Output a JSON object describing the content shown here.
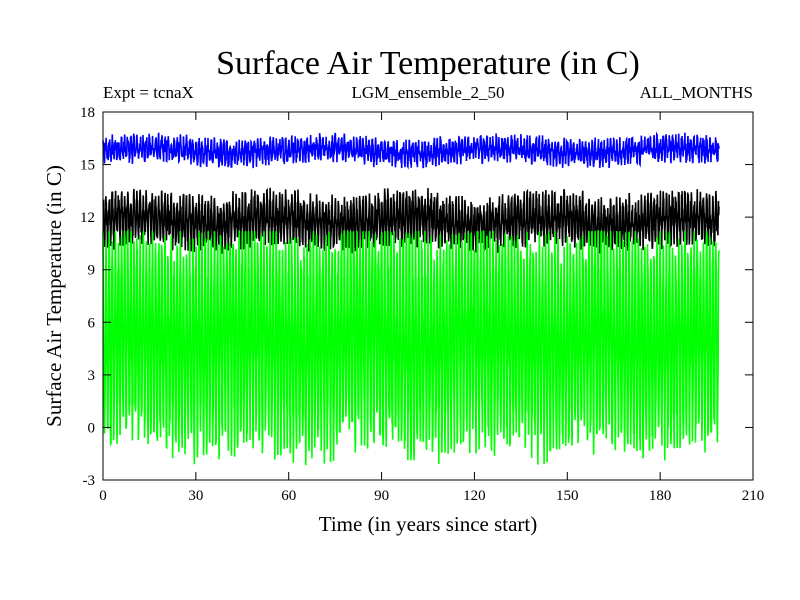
{
  "chart_data": {
    "type": "line",
    "title": "Surface Air Temperature (in C)",
    "subtitle_left": "Expt = tcnaX",
    "subtitle_center": "LGM_ensemble_2_50",
    "subtitle_right": "ALL_MONTHS",
    "xlabel": "Time (in years since start)",
    "ylabel": "Surface Air Temperature (in C)",
    "xlim": [
      0,
      210
    ],
    "ylim": [
      -3,
      18
    ],
    "x_ticks": [
      0,
      30,
      60,
      90,
      120,
      150,
      180,
      210
    ],
    "y_ticks": [
      -3,
      0,
      3,
      6,
      9,
      12,
      15,
      18
    ],
    "x_range": [
      0,
      199
    ],
    "grid": false,
    "series": [
      {
        "name": "upper series (blue)",
        "color": "#0000ff",
        "min_approx": 14.8,
        "max_approx": 16.9,
        "mean_approx": 15.8
      },
      {
        "name": "middle series (black)",
        "color": "#000000",
        "min_approx": 9.5,
        "max_approx": 13.9,
        "mean_approx": 11.8
      },
      {
        "name": "lower series (green)",
        "color": "#00ff00",
        "min_approx": -2.8,
        "max_approx": 11.2,
        "mean_approx": 5.0
      }
    ]
  }
}
